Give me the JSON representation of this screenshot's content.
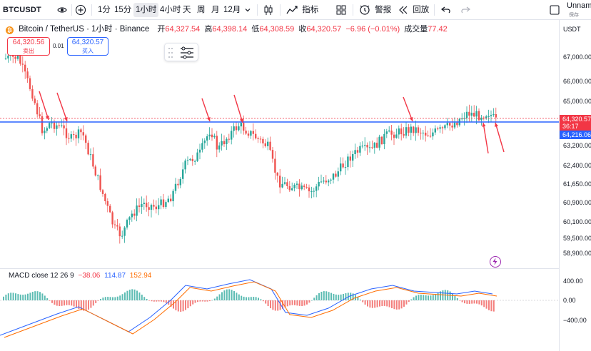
{
  "toolbar": {
    "symbol": "BTCUSDT",
    "timeframes": [
      "1分",
      "15分",
      "1小时",
      "4小时",
      "天",
      "周",
      "月",
      "12月"
    ],
    "active_timeframe": "1小时",
    "indicators_label": "指标",
    "alert_label": "警报",
    "replay_label": "回放",
    "layout_name": "Unnamed",
    "save_label": "保存"
  },
  "legend": {
    "title": "Bitcoin / TetherUS · 1小时 · Binance",
    "open_label": "开",
    "open": "64,327.54",
    "high_label": "高",
    "high": "64,398.14",
    "low_label": "低",
    "low": "64,308.59",
    "close_label": "收",
    "close": "64,320.57",
    "change": "−6.96 (−0.01%)",
    "volume_label": "成交量",
    "volume": "77.42"
  },
  "trade": {
    "sell_price": "64,320.56",
    "sell_label": "卖出",
    "spread": "0.01",
    "buy_price": "64,320.57",
    "buy_label": "买入"
  },
  "price_axis": {
    "currency": "USDT",
    "ticks": [
      "67,000.00",
      "66,000.00",
      "65,000.00",
      "63,200.00",
      "62,400.00",
      "61,650.00",
      "60,900.00",
      "60,100.00",
      "59,500.00",
      "58,900.00"
    ],
    "current_price": "64,320.57",
    "countdown": "36:17",
    "line_price": "64,216.06"
  },
  "macd": {
    "label": "MACD close 12 26 9",
    "histogram": "−38.06",
    "macd": "114.87",
    "signal": "152.94",
    "ticks": [
      "400.00",
      "0.00",
      "−400.00"
    ]
  },
  "colors": {
    "up": "#26a69a",
    "down": "#ef5350",
    "horizontal_line": "#2962ff",
    "arrows": "#f23645",
    "macd_line": "#2962ff",
    "signal_line": "#ff6d00"
  },
  "icons": [
    "eye-icon",
    "plus-icon",
    "chevron-down-icon",
    "candles-icon",
    "indicators-icon",
    "layout-icon",
    "alert-icon",
    "replay-icon",
    "undo-icon",
    "redo-icon",
    "fullscreen-icon",
    "lightning-icon"
  ]
}
